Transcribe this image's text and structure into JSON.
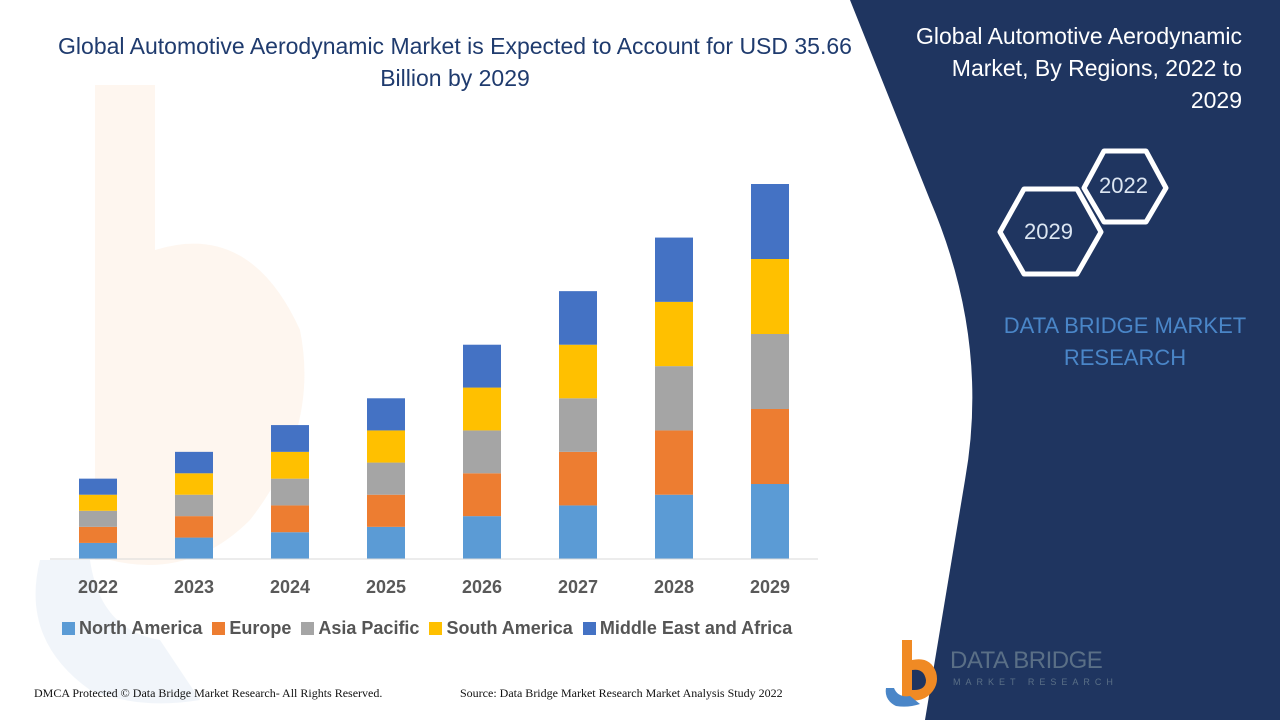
{
  "title": "Global Automotive Aerodynamic Market is Expected to Account for USD 35.66 Billion by 2029",
  "panel": {
    "title": "Global Automotive Aerodynamic Market, By Regions, 2022 to 2029",
    "hex_top": "2022",
    "hex_bottom": "2029",
    "brand": "DATA BRIDGE MARKET RESEARCH"
  },
  "footer": {
    "copyright": "DMCA Protected © Data Bridge Market Research- All Rights Reserved.",
    "source": "Source: Data Bridge Market Research Market Analysis Study 2022"
  },
  "logo": {
    "name": "DATA BRIDGE",
    "tagline": "MARKET RESEARCH"
  },
  "colors": {
    "navy_panel": "#1f3560",
    "title_blue": "#1f3b6e",
    "north_america": "#5b9bd5",
    "europe": "#ed7d31",
    "asia_pacific": "#a5a5a5",
    "south_america": "#ffc000",
    "middle_east_africa": "#4472c4"
  },
  "chart_data": {
    "type": "bar",
    "stacked": true,
    "categories": [
      "2022",
      "2023",
      "2024",
      "2025",
      "2026",
      "2027",
      "2028",
      "2029"
    ],
    "series": [
      {
        "name": "North America",
        "color": "#5b9bd5",
        "values": [
          3,
          4,
          5,
          6,
          8,
          10,
          12,
          14
        ]
      },
      {
        "name": "Europe",
        "color": "#ed7d31",
        "values": [
          3,
          4,
          5,
          6,
          8,
          10,
          12,
          14
        ]
      },
      {
        "name": "Asia Pacific",
        "color": "#a5a5a5",
        "values": [
          3,
          4,
          5,
          6,
          8,
          10,
          12,
          14
        ]
      },
      {
        "name": "South America",
        "color": "#ffc000",
        "values": [
          3,
          4,
          5,
          6,
          8,
          10,
          12,
          14
        ]
      },
      {
        "name": "Middle East and Africa",
        "color": "#4472c4",
        "values": [
          3,
          4,
          5,
          6,
          8,
          10,
          12,
          14
        ]
      }
    ],
    "ylim": [
      0,
      70
    ],
    "grid": false,
    "legend": "bottom"
  }
}
